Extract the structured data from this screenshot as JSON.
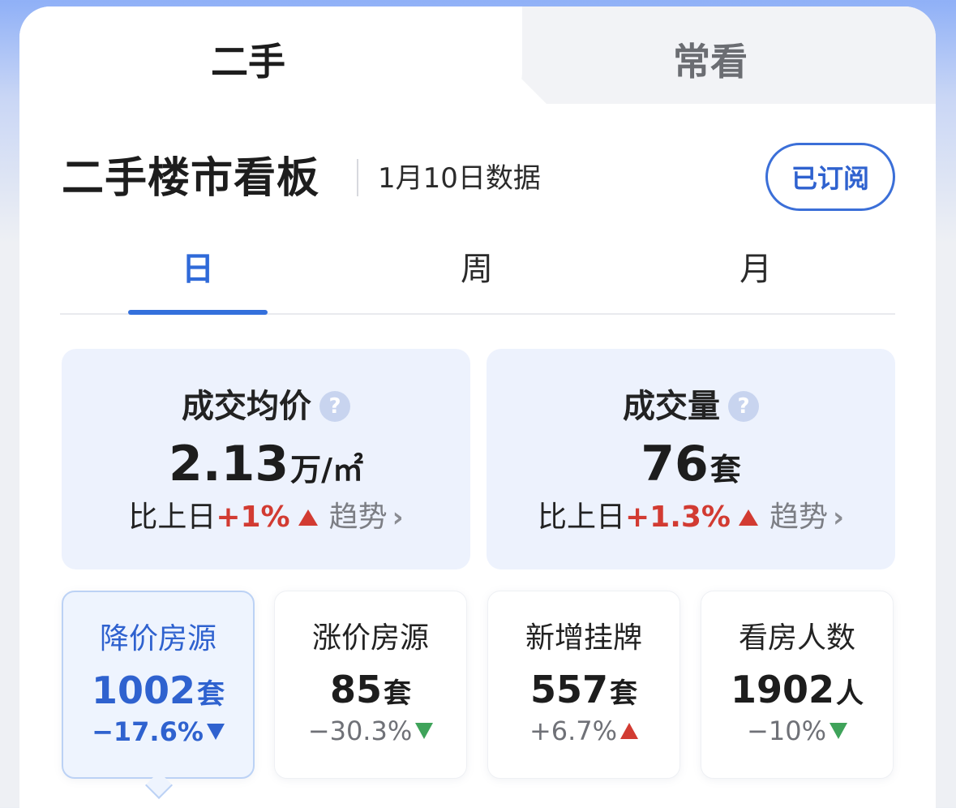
{
  "top_tabs": {
    "used": "二手",
    "watch": "常看"
  },
  "header": {
    "title": "二手楼市看板",
    "date": "1月10日数据",
    "subscribe": "已订阅"
  },
  "period_tabs": [
    "日",
    "周",
    "月"
  ],
  "big_stats": [
    {
      "title": "成交均价",
      "value": "2.13",
      "unit": "万/㎡",
      "compare_label": "比上日",
      "change": "+1%",
      "trend": "趋势"
    },
    {
      "title": "成交量",
      "value": "76",
      "unit": "套",
      "compare_label": "比上日",
      "change": "+1.3%",
      "trend": "趋势"
    }
  ],
  "small_stats": [
    {
      "label": "降价房源",
      "value": "1002",
      "unit": "套",
      "change": "−17.6%",
      "direction": "down"
    },
    {
      "label": "涨价房源",
      "value": "85",
      "unit": "套",
      "change": "−30.3%",
      "direction": "down"
    },
    {
      "label": "新增挂牌",
      "value": "557",
      "unit": "套",
      "change": "+6.7%",
      "direction": "up"
    },
    {
      "label": "看房人数",
      "value": "1902",
      "unit": "人",
      "change": "−10%",
      "direction": "down"
    }
  ],
  "colors": {
    "accent": "#3470dc",
    "up": "#d23b32",
    "down": "#3fa35a"
  },
  "icons": {
    "help": "question-circle-icon",
    "chevron": "chevron-right-icon"
  }
}
